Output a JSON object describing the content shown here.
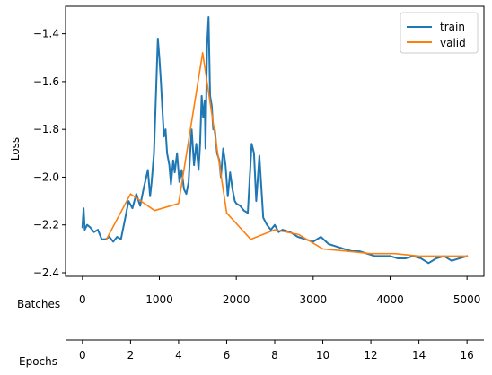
{
  "chart_data": {
    "type": "line",
    "ylabel": "Loss",
    "xlabel": "Batches",
    "xlabel2": "Epochs",
    "xlim": [
      -220,
      5220
    ],
    "ylim": [
      -2.415,
      -1.285
    ],
    "xticks": [
      0,
      1000,
      2000,
      3000,
      4000,
      5000
    ],
    "yticks": [
      -2.4,
      -2.2,
      -2.0,
      -1.8,
      -1.6,
      -1.4
    ],
    "xticks2": [
      0,
      2,
      4,
      6,
      8,
      10,
      12,
      14,
      16
    ],
    "batches_per_epoch": 312.5,
    "legend_position": "top-right",
    "series": [
      {
        "name": "train",
        "color": "#1f77b4",
        "x": [
          0,
          15,
          30,
          60,
          100,
          150,
          200,
          250,
          300,
          350,
          400,
          450,
          500,
          550,
          600,
          650,
          700,
          750,
          800,
          850,
          880,
          900,
          930,
          960,
          980,
          1000,
          1020,
          1040,
          1060,
          1080,
          1100,
          1130,
          1150,
          1180,
          1200,
          1230,
          1260,
          1290,
          1320,
          1350,
          1380,
          1400,
          1420,
          1450,
          1480,
          1510,
          1530,
          1550,
          1570,
          1590,
          1600,
          1620,
          1640,
          1660,
          1680,
          1700,
          1720,
          1750,
          1780,
          1800,
          1830,
          1860,
          1890,
          1920,
          1950,
          1980,
          2000,
          2050,
          2100,
          2150,
          2200,
          2230,
          2260,
          2300,
          2350,
          2400,
          2450,
          2500,
          2550,
          2600,
          2700,
          2800,
          2900,
          3000,
          3100,
          3200,
          3300,
          3400,
          3500,
          3600,
          3700,
          3800,
          3900,
          4000,
          4100,
          4200,
          4300,
          4400,
          4500,
          4600,
          4700,
          4800,
          4900,
          5000
        ],
        "values": [
          -2.21,
          -2.13,
          -2.22,
          -2.2,
          -2.21,
          -2.23,
          -2.22,
          -2.26,
          -2.26,
          -2.25,
          -2.27,
          -2.25,
          -2.26,
          -2.18,
          -2.1,
          -2.13,
          -2.07,
          -2.12,
          -2.04,
          -1.97,
          -2.08,
          -2.02,
          -1.9,
          -1.61,
          -1.42,
          -1.5,
          -1.6,
          -1.72,
          -1.83,
          -1.8,
          -1.9,
          -1.95,
          -2.03,
          -1.93,
          -1.98,
          -1.9,
          -2.02,
          -1.97,
          -2.05,
          -2.07,
          -2.02,
          -1.9,
          -1.8,
          -1.95,
          -1.86,
          -1.97,
          -1.86,
          -1.66,
          -1.75,
          -1.68,
          -1.88,
          -1.45,
          -1.33,
          -1.66,
          -1.7,
          -1.8,
          -1.8,
          -1.9,
          -1.93,
          -2.0,
          -1.88,
          -1.95,
          -2.08,
          -1.98,
          -2.05,
          -2.1,
          -2.11,
          -2.12,
          -2.14,
          -2.15,
          -1.86,
          -1.9,
          -2.1,
          -1.91,
          -2.17,
          -2.2,
          -2.22,
          -2.2,
          -2.23,
          -2.22,
          -2.23,
          -2.25,
          -2.26,
          -2.27,
          -2.25,
          -2.28,
          -2.29,
          -2.3,
          -2.31,
          -2.31,
          -2.32,
          -2.33,
          -2.33,
          -2.33,
          -2.34,
          -2.34,
          -2.33,
          -2.34,
          -2.36,
          -2.34,
          -2.33,
          -2.35,
          -2.34,
          -2.33
        ]
      },
      {
        "name": "valid",
        "color": "#ff7f0e",
        "x": [
          312.5,
          625,
          937.5,
          1250,
          1562.5,
          1875,
          2187.5,
          2500,
          2812.5,
          3125,
          3437.5,
          3750,
          4062.5,
          4375,
          4687.5,
          5000
        ],
        "values": [
          -2.26,
          -2.07,
          -2.14,
          -2.11,
          -1.48,
          -2.15,
          -2.26,
          -2.22,
          -2.24,
          -2.3,
          -2.31,
          -2.32,
          -2.32,
          -2.33,
          -2.33,
          -2.33
        ]
      }
    ]
  }
}
